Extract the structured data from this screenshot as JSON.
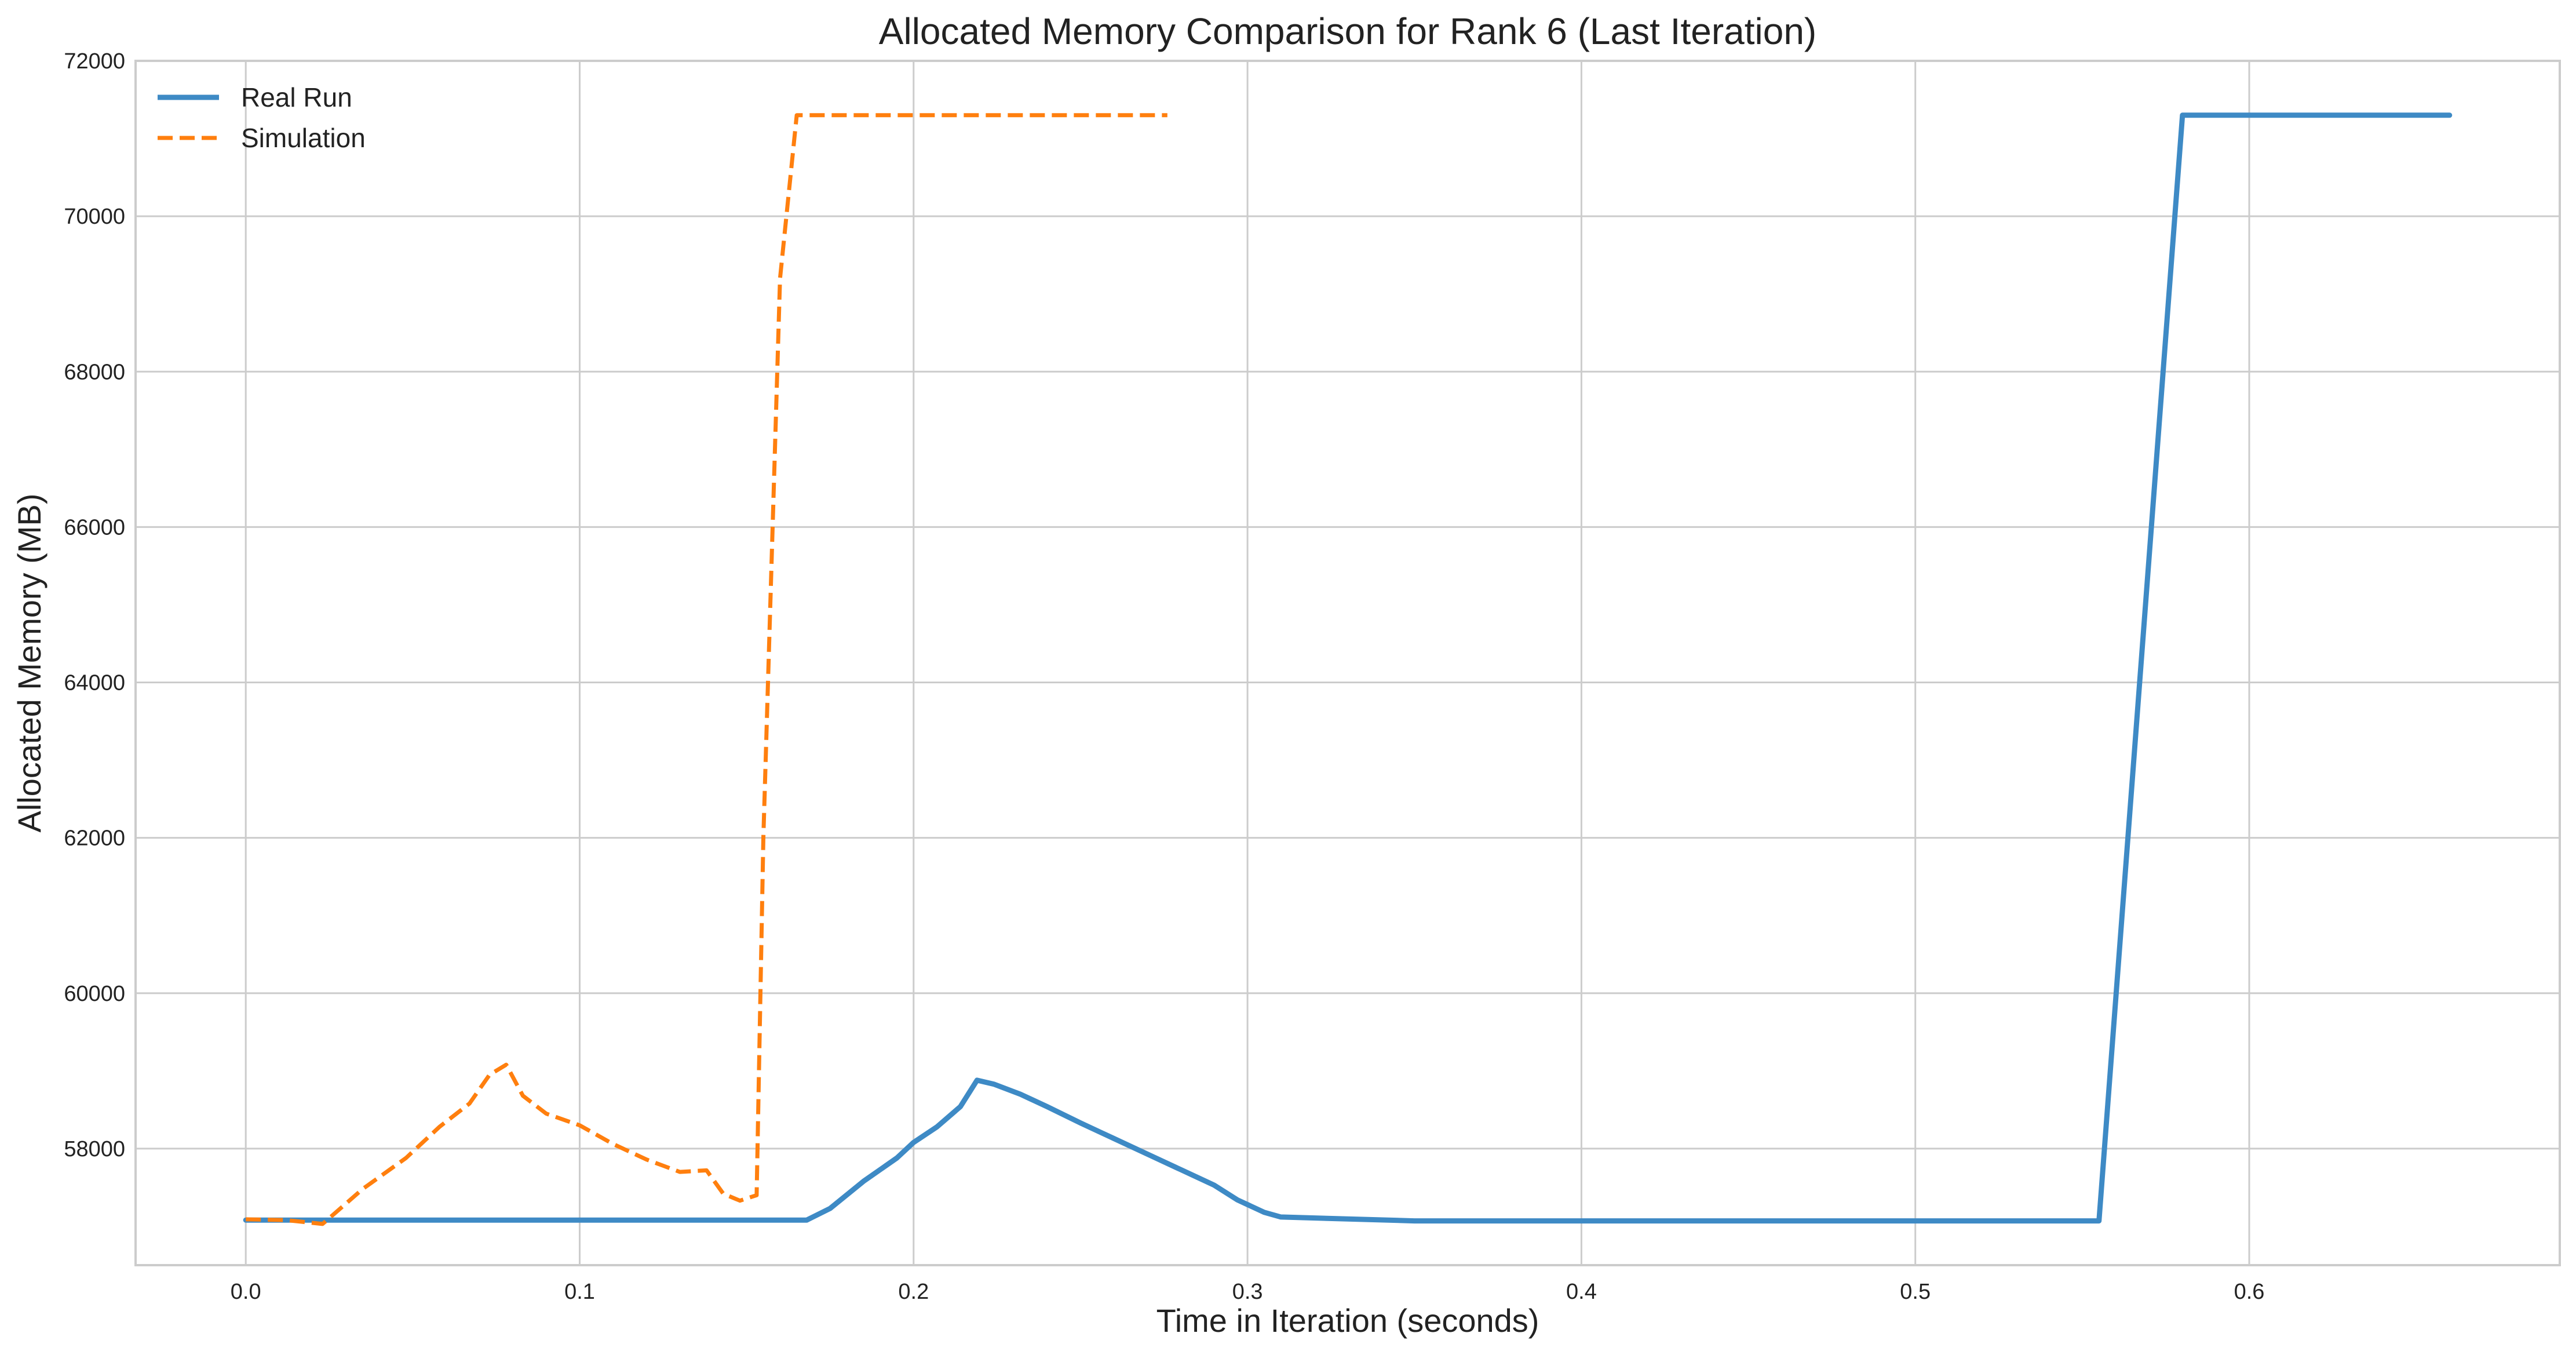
{
  "chart_data": {
    "type": "line",
    "title": "Allocated Memory Comparison for Rank 6 (Last Iteration)",
    "xlabel": "Time in Iteration (seconds)",
    "ylabel": "Allocated Memory (MB)",
    "xlim": [
      -0.033,
      0.693
    ],
    "ylim": [
      56500,
      72000
    ],
    "xticks": [
      0.0,
      0.1,
      0.2,
      0.3,
      0.4,
      0.5,
      0.6
    ],
    "xtick_labels": [
      "0.0",
      "0.1",
      "0.2",
      "0.3",
      "0.4",
      "0.5",
      "0.6"
    ],
    "yticks": [
      58000,
      60000,
      62000,
      64000,
      66000,
      68000,
      70000,
      72000
    ],
    "ytick_labels": [
      "58000",
      "60000",
      "62000",
      "64000",
      "66000",
      "68000",
      "70000",
      "72000"
    ],
    "grid": true,
    "legend": "top-left",
    "series": [
      {
        "name": "Real Run",
        "color": "#3e8ac5",
        "style": "solid",
        "x": [
          0.0,
          0.02,
          0.05,
          0.1,
          0.15,
          0.168,
          0.175,
          0.185,
          0.195,
          0.2,
          0.207,
          0.214,
          0.219,
          0.224,
          0.232,
          0.24,
          0.25,
          0.26,
          0.27,
          0.28,
          0.29,
          0.297,
          0.305,
          0.31,
          0.35,
          0.4,
          0.45,
          0.5,
          0.549,
          0.555,
          0.58,
          0.62,
          0.66
        ],
        "y": [
          57080,
          57080,
          57080,
          57080,
          57080,
          57080,
          57230,
          57580,
          57880,
          58080,
          58280,
          58540,
          58880,
          58830,
          58700,
          58540,
          58330,
          58130,
          57930,
          57730,
          57530,
          57340,
          57180,
          57120,
          57070,
          57070,
          57070,
          57070,
          57070,
          57070,
          71300,
          71300,
          71300
        ]
      },
      {
        "name": "Simulation",
        "color": "#ff7f0e",
        "style": "dashed",
        "x": [
          0.0,
          0.012,
          0.023,
          0.035,
          0.048,
          0.058,
          0.067,
          0.073,
          0.078,
          0.083,
          0.09,
          0.1,
          0.11,
          0.12,
          0.13,
          0.138,
          0.143,
          0.148,
          0.153,
          0.155,
          0.16,
          0.165,
          0.167,
          0.2,
          0.24,
          0.276
        ],
        "y": [
          57090,
          57080,
          57030,
          57480,
          57880,
          58280,
          58580,
          58950,
          59080,
          58680,
          58450,
          58300,
          58060,
          57860,
          57700,
          57720,
          57420,
          57330,
          57400,
          62000,
          69200,
          71300,
          71300,
          71300,
          71300,
          71300
        ]
      }
    ]
  }
}
